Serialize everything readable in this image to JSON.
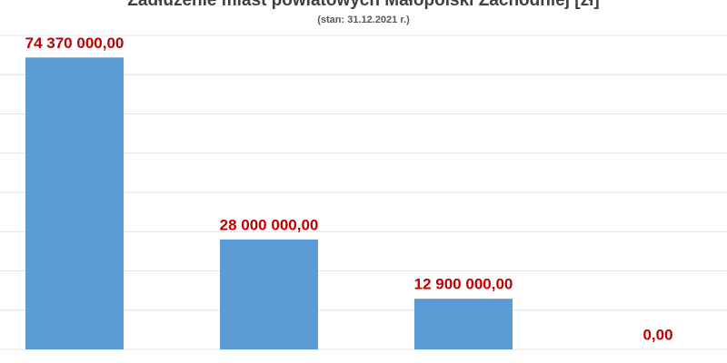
{
  "chart_data": {
    "type": "bar",
    "title": "Zadłużenie miast powiatowych Małopolski Zachodniej [zł]",
    "subtitle": "(stan: 31.12.2021 r.)",
    "categories": [
      null,
      null,
      null,
      null
    ],
    "values": [
      74370000,
      28000000,
      12900000,
      0
    ],
    "value_labels": [
      "74 370 000,00",
      "28 000 000,00",
      "12 900 000,00",
      "0,00"
    ],
    "color": "#5b9bd5",
    "ylim": [
      0,
      80000000
    ],
    "yticks": [
      0,
      10000000,
      20000000,
      30000000,
      40000000,
      50000000,
      60000000,
      70000000,
      80000000
    ],
    "grid": true
  }
}
